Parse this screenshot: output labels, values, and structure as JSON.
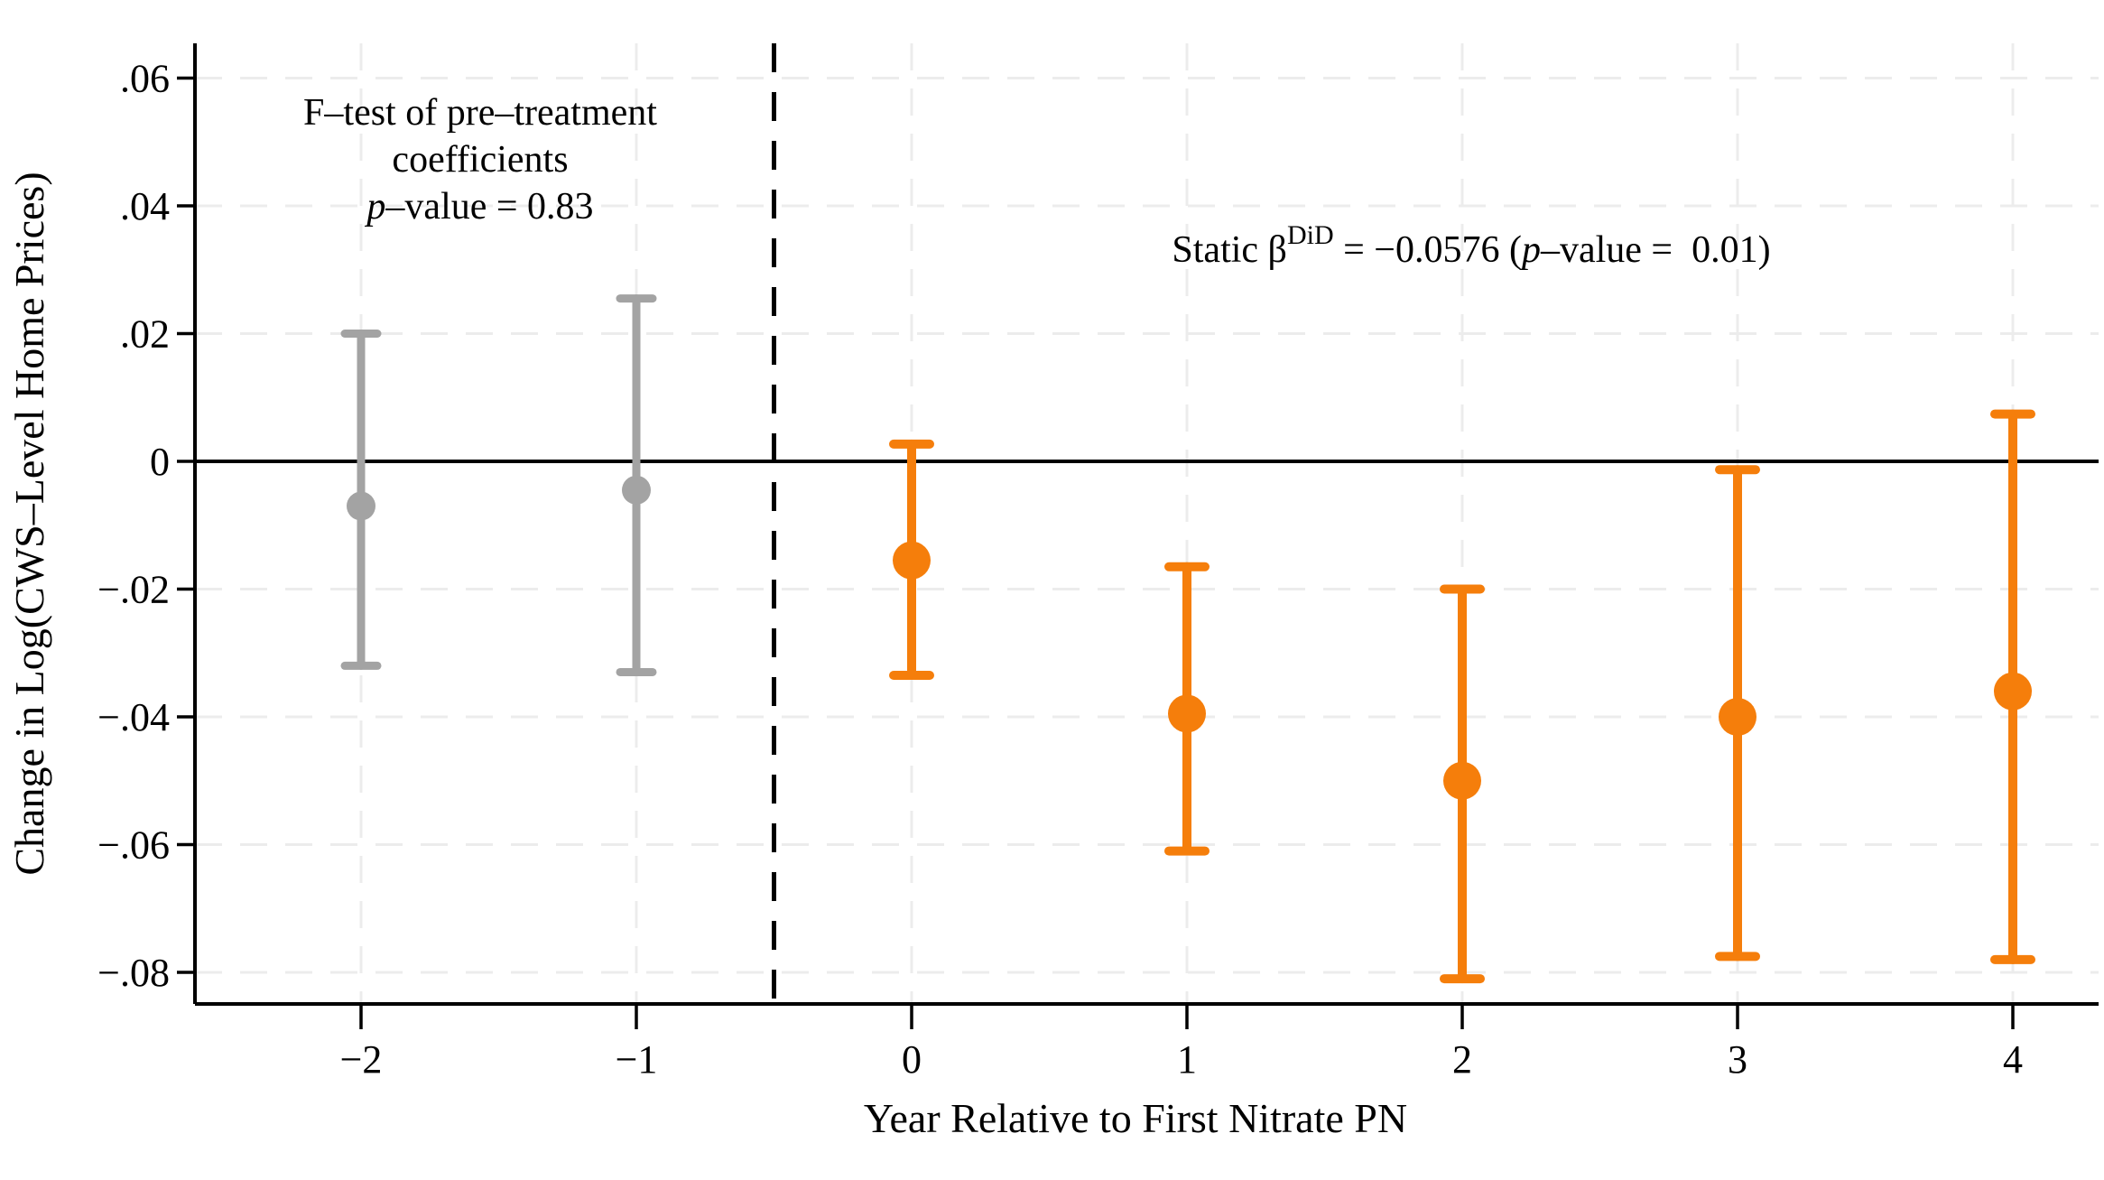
{
  "chart_data": {
    "type": "scatter",
    "subtype": "event-study-coefficient-plot",
    "title": "",
    "xlabel": "Year Relative to First Nitrate PN",
    "ylabel": "Change in Log(CWS–Level Home Prices)",
    "xlim": [
      -2.6,
      4.31
    ],
    "ylim": [
      -0.0855,
      0.0655
    ],
    "grid": true,
    "legend_position": "none",
    "x_ticks": [
      {
        "value": -2,
        "label": "−2"
      },
      {
        "value": -1,
        "label": "−1"
      },
      {
        "value": 0,
        "label": "0"
      },
      {
        "value": 1,
        "label": "1"
      },
      {
        "value": 2,
        "label": "2"
      },
      {
        "value": 3,
        "label": "3"
      },
      {
        "value": 4,
        "label": "4"
      }
    ],
    "y_ticks": [
      {
        "value": 0.06,
        "label": ".06"
      },
      {
        "value": 0.04,
        "label": ".04"
      },
      {
        "value": 0.02,
        "label": ".02"
      },
      {
        "value": 0.0,
        "label": "0"
      },
      {
        "value": -0.02,
        "label": "−.02"
      },
      {
        "value": -0.04,
        "label": "−.04"
      },
      {
        "value": -0.06,
        "label": "−.06"
      },
      {
        "value": -0.08,
        "label": "−.08"
      }
    ],
    "zero_line_y": 0,
    "treatment_divider_x": -0.5,
    "series": [
      {
        "name": "pre-treatment-coefficients",
        "color": "#a3a3a3",
        "marker_radius": 16,
        "points": [
          {
            "x": -2,
            "y": -0.007,
            "ci_low": -0.032,
            "ci_high": 0.02
          },
          {
            "x": -1,
            "y": -0.0045,
            "ci_low": -0.033,
            "ci_high": 0.0255
          }
        ]
      },
      {
        "name": "post-treatment-coefficients",
        "color": "#f57e0b",
        "marker_radius": 21,
        "points": [
          {
            "x": 0,
            "y": -0.0155,
            "ci_low": -0.0335,
            "ci_high": 0.0027
          },
          {
            "x": 1,
            "y": -0.0395,
            "ci_low": -0.061,
            "ci_high": -0.0165
          },
          {
            "x": 2,
            "y": -0.05,
            "ci_low": -0.081,
            "ci_high": -0.02
          },
          {
            "x": 3,
            "y": -0.04,
            "ci_low": -0.0775,
            "ci_high": -0.0013
          },
          {
            "x": 4,
            "y": -0.036,
            "ci_low": -0.078,
            "ci_high": 0.0074
          }
        ]
      }
    ],
    "annotations": {
      "pretest_note": {
        "line1": "F–test of pre–treatment",
        "line2": "coefficients",
        "line3_italic": "p",
        "line3_rest": "–value = 0.83"
      },
      "static_note": {
        "prefix": "Static β",
        "superscript": "DiD",
        "middle": " = −0.0576 (",
        "italic": "p",
        "suffix": "–value =  0.01)"
      }
    },
    "colors": {
      "pre_series": "#a3a3a3",
      "post_series": "#f57e0b",
      "gridline": "#ececec",
      "axis": "#000000",
      "background": "#ffffff"
    }
  }
}
